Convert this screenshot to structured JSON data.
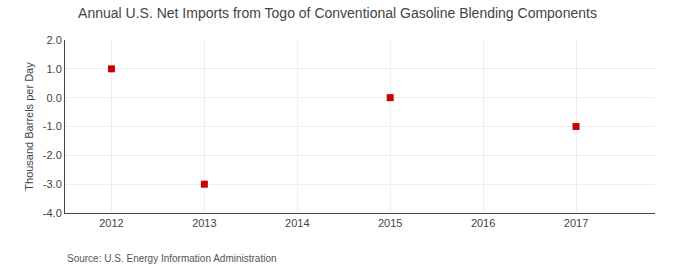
{
  "chart_data": {
    "type": "scatter",
    "title": "Annual U.S. Net Imports from Togo of Conventional Gasoline Blending Components",
    "ylabel": "Thousand Barrels per Day",
    "annotations": [
      "Source: U.S. Energy Information Administration"
    ],
    "x": [
      2012,
      2013,
      2015,
      2017
    ],
    "values": [
      1.0,
      -3.0,
      0.0,
      -1.0
    ],
    "color": "#CC0000",
    "marker": "square",
    "xlim": [
      2011.5,
      2017.85
    ],
    "ylim": [
      -4.0,
      2.0
    ],
    "xticks": [
      2012,
      2013,
      2014,
      2015,
      2016,
      2017
    ],
    "yticks": [
      {
        "value": -4.0,
        "label": "-4.0"
      },
      {
        "value": -3.0,
        "label": "-3.0"
      },
      {
        "value": -2.0,
        "label": "-2.0"
      },
      {
        "value": -1.0,
        "label": "-1.0"
      },
      {
        "value": 0.0,
        "label": "0.0"
      },
      {
        "value": 1.0,
        "label": "1.0"
      },
      {
        "value": 2.0,
        "label": "2.0"
      }
    ],
    "grid": true
  }
}
